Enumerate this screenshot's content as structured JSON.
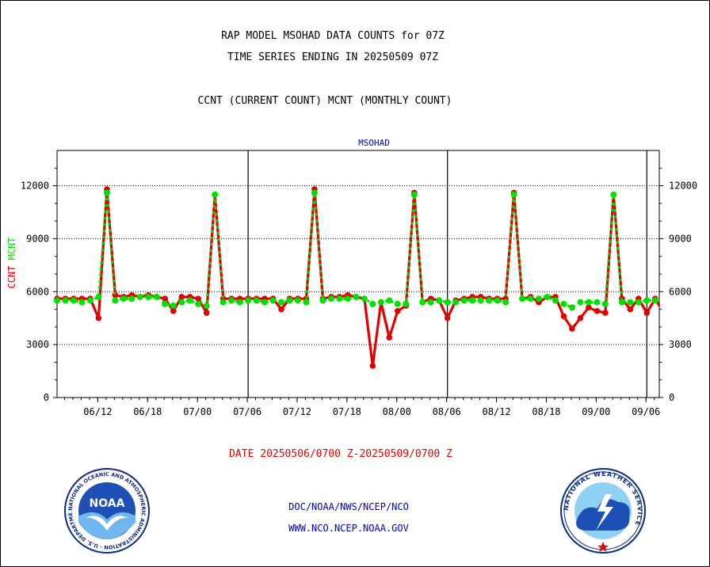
{
  "titles": {
    "line1": "RAP MODEL MSOHAD DATA COUNTS for 07Z",
    "line2": "TIME SERIES ENDING IN 20250509 07Z",
    "line3": "CCNT (CURRENT COUNT) MCNT (MONTHLY COUNT)"
  },
  "chart_data": {
    "type": "line",
    "title": "MSOHAD",
    "ylabel_left": [
      "CCNT",
      "MCNT"
    ],
    "ylim": [
      0,
      14000
    ],
    "yticks": [
      0,
      3000,
      6000,
      9000,
      12000
    ],
    "xticks": [
      "06/12",
      "06/18",
      "07/00",
      "07/06",
      "07/12",
      "07/18",
      "08/00",
      "08/06",
      "08/12",
      "08/18",
      "09/00",
      "09/06"
    ],
    "xlim": [
      0,
      72.5
    ],
    "grid": true,
    "colors": {
      "ccnt": "#e00000",
      "mcnt": "#00e000",
      "axis": "#000000",
      "title": "#0000c8"
    },
    "series": [
      {
        "name": "CCNT",
        "x": [
          0,
          1,
          2,
          3,
          4,
          5,
          6,
          7,
          8,
          9,
          10,
          11,
          12,
          13,
          14,
          15,
          16,
          17,
          18,
          19,
          20,
          21,
          22,
          23,
          24,
          25,
          26,
          27,
          28,
          29,
          30,
          31,
          32,
          33,
          34,
          35,
          36,
          37,
          38,
          39,
          40,
          41,
          42,
          43,
          44,
          45,
          46,
          47,
          48,
          49,
          50,
          51,
          52,
          53,
          54,
          55,
          56,
          57,
          58,
          59,
          60,
          61,
          62,
          63,
          64,
          65,
          66,
          67,
          68,
          69,
          70,
          71,
          72
        ],
        "values": [
          5600,
          5600,
          5600,
          5600,
          5600,
          4500,
          11800,
          5800,
          5700,
          5800,
          5700,
          5800,
          5700,
          5600,
          4900,
          5700,
          5700,
          5600,
          4800,
          11500,
          5600,
          5600,
          5600,
          5600,
          5600,
          5600,
          5600,
          5000,
          5600,
          5600,
          5600,
          11800,
          5600,
          5700,
          5700,
          5800,
          5700,
          5600,
          1800,
          5400,
          3400,
          4900,
          5200,
          11600,
          5400,
          5600,
          5500,
          4500,
          5500,
          5600,
          5700,
          5700,
          5600,
          5600,
          5600,
          11600,
          5600,
          5700,
          5400,
          5700,
          5700,
          4600,
          3900,
          4500,
          5100,
          4900,
          4800,
          11500,
          5600,
          5000,
          5600,
          4800,
          5600
        ],
        "extra_end": 5200
      },
      {
        "name": "MCNT",
        "x": [
          0,
          1,
          2,
          3,
          4,
          5,
          6,
          7,
          8,
          9,
          10,
          11,
          12,
          13,
          14,
          15,
          16,
          17,
          18,
          19,
          20,
          21,
          22,
          23,
          24,
          25,
          26,
          27,
          28,
          29,
          30,
          31,
          32,
          33,
          34,
          35,
          36,
          37,
          38,
          39,
          40,
          41,
          42,
          43,
          44,
          45,
          46,
          47,
          48,
          49,
          50,
          51,
          52,
          53,
          54,
          55,
          56,
          57,
          58,
          59,
          60,
          61,
          62,
          63,
          64,
          65,
          66,
          67,
          68,
          69,
          70,
          71,
          72
        ],
        "values": [
          5500,
          5500,
          5500,
          5400,
          5500,
          5700,
          11600,
          5500,
          5600,
          5600,
          5700,
          5700,
          5700,
          5300,
          5200,
          5400,
          5500,
          5300,
          5200,
          11500,
          5400,
          5500,
          5400,
          5500,
          5500,
          5400,
          5500,
          5400,
          5500,
          5500,
          5400,
          11600,
          5500,
          5600,
          5600,
          5600,
          5700,
          5600,
          5300,
          5400,
          5500,
          5300,
          5300,
          11500,
          5400,
          5400,
          5500,
          5400,
          5400,
          5500,
          5500,
          5500,
          5500,
          5500,
          5400,
          11500,
          5600,
          5600,
          5600,
          5700,
          5500,
          5300,
          5100,
          5400,
          5400,
          5400,
          5300,
          11500,
          5400,
          5400,
          5400,
          5500,
          5500
        ],
        "extra_end": 5500
      }
    ]
  },
  "date_range": "DATE 20250506/0700 Z-20250509/0700 Z",
  "footer": {
    "line1": "DOC/NOAA/NWS/NCEP/NCO",
    "line2": "WWW.NCO.NCEP.NOAA.GOV"
  },
  "logos": {
    "noaa_text": "NOAA",
    "noaa_ring": "NATIONAL OCEANIC AND ATMOSPHERIC ADMINISTRATION · U.S. DEPARTMENT OF COMMERCE",
    "nws_ring": "NATIONAL WEATHER SERVICE"
  }
}
